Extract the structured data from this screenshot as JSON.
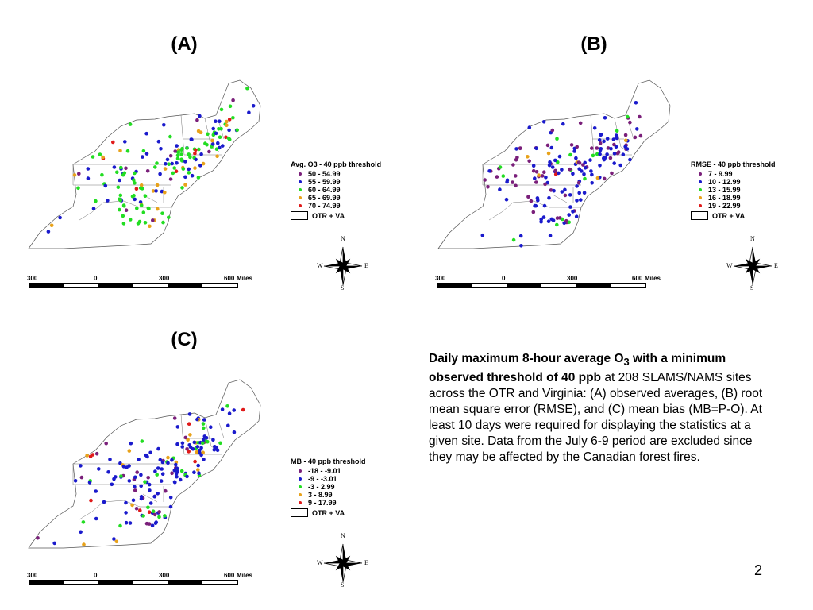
{
  "panels": [
    {
      "label": "(A)",
      "legend": {
        "title": "Avg. O3 - 40 ppb threshold",
        "items": [
          {
            "label": "50 - 54.99",
            "color": "#7a1f7a"
          },
          {
            "label": "55 - 59.99",
            "color": "#1a1acc"
          },
          {
            "label": "60 - 64.99",
            "color": "#22dd22"
          },
          {
            "label": "65 - 69.99",
            "color": "#e8a21a"
          },
          {
            "label": "70 - 74.99",
            "color": "#e01a1a"
          }
        ],
        "region_label": "OTR + VA"
      },
      "dot_mix": [
        0.08,
        0.3,
        0.42,
        0.16,
        0.04
      ]
    },
    {
      "label": "(B)",
      "legend": {
        "title": "RMSE - 40 ppb threshold",
        "items": [
          {
            "label": "7 - 9.99",
            "color": "#7a1f7a"
          },
          {
            "label": "10 - 12.99",
            "color": "#1a1acc"
          },
          {
            "label": "13 - 15.99",
            "color": "#22dd22"
          },
          {
            "label": "16 - 18.99",
            "color": "#e8a21a"
          },
          {
            "label": "19 - 22.99",
            "color": "#e01a1a"
          }
        ],
        "region_label": "OTR + VA"
      },
      "dot_mix": [
        0.3,
        0.58,
        0.08,
        0.03,
        0.01
      ]
    },
    {
      "label": "(C)",
      "legend": {
        "title": "MB - 40 ppb threshold",
        "items": [
          {
            "label": "-18 - -9.01",
            "color": "#7a1f7a"
          },
          {
            "label": "-9 - -3.01",
            "color": "#1a1acc"
          },
          {
            "label": "-3 - 2.99",
            "color": "#22dd22"
          },
          {
            "label": "3 - 8.99",
            "color": "#e8a21a"
          },
          {
            "label": "9 - 17.99",
            "color": "#e01a1a"
          }
        ],
        "region_label": "OTR + VA"
      },
      "dot_mix": [
        0.07,
        0.58,
        0.22,
        0.08,
        0.05
      ]
    }
  ],
  "compass": {
    "n": "N",
    "s": "S",
    "e": "E",
    "w": "W"
  },
  "scale": {
    "labels": [
      "300",
      "0",
      "300",
      "600"
    ],
    "unit": "Miles"
  },
  "caption": {
    "bold_1": "Daily maximum 8-hour average O",
    "sub": "3",
    "bold_2": " with a minimum observed threshold of 40 ppb",
    "rest": " at 208 SLAMS/NAMS sites across the OTR and Virginia: (A) observed averages, (B) root mean square error (RMSE), and (C) mean bias (MB=P-O).  At least 10 days were required for displaying the statistics at a given site.  Data from the July 6-9 period are excluded since they may be affected by the Canadian forest fires."
  },
  "page_number": "2"
}
